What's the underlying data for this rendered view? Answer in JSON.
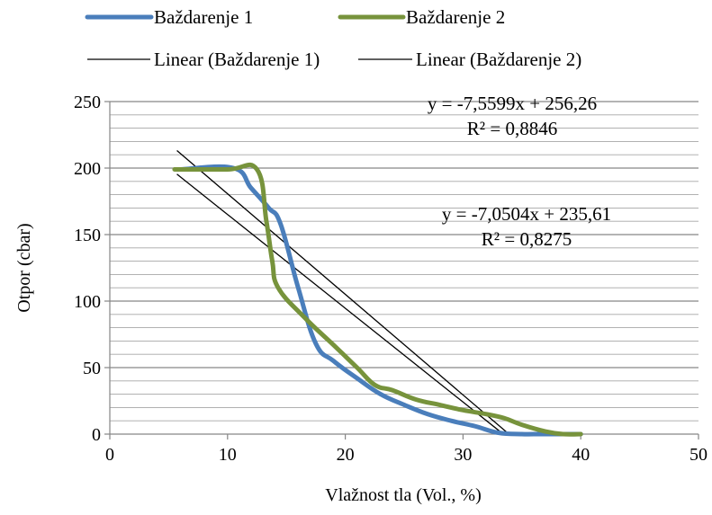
{
  "chart_data": {
    "type": "line",
    "xlabel": "Vlažnost tla (Vol., %)",
    "ylabel": "Otpor  (cbar)",
    "xlim": [
      0,
      50
    ],
    "ylim": [
      0,
      250
    ],
    "x_ticks": [
      0,
      10,
      20,
      30,
      40,
      50
    ],
    "y_ticks": [
      0,
      50,
      100,
      150,
      200,
      250
    ],
    "x_tick_labels": [
      "0",
      "10",
      "20",
      "30",
      "40",
      "50"
    ],
    "y_tick_labels": [
      "0",
      "50",
      "100",
      "150",
      "200",
      "250"
    ],
    "grid": "horizontal",
    "legend": "top",
    "series": [
      {
        "name": "Baždarenje 1",
        "color": "#4A7EBB",
        "points": [
          [
            6,
            199
          ],
          [
            10.5,
            200
          ],
          [
            12,
            185
          ],
          [
            13.5,
            170
          ],
          [
            14.5,
            158
          ],
          [
            16,
            110
          ],
          [
            17.5,
            68
          ],
          [
            19,
            55
          ],
          [
            21,
            42
          ],
          [
            23,
            30
          ],
          [
            25,
            22
          ],
          [
            27,
            15
          ],
          [
            29,
            10
          ],
          [
            31,
            6
          ],
          [
            33,
            1
          ],
          [
            35,
            0
          ],
          [
            36,
            0
          ],
          [
            38,
            0
          ],
          [
            40,
            0
          ]
        ]
      },
      {
        "name": "Baždarenje 2",
        "color": "#77933C",
        "points": [
          [
            5.5,
            199
          ],
          [
            10,
            199
          ],
          [
            12.5,
            199
          ],
          [
            13.3,
            160
          ],
          [
            13.8,
            130
          ],
          [
            14.3,
            110
          ],
          [
            16.5,
            88
          ],
          [
            19,
            67
          ],
          [
            21,
            50
          ],
          [
            22.5,
            37
          ],
          [
            24,
            33
          ],
          [
            26,
            26
          ],
          [
            28,
            22
          ],
          [
            30,
            18
          ],
          [
            32,
            15
          ],
          [
            33.5,
            12
          ],
          [
            35,
            7
          ],
          [
            37,
            2
          ],
          [
            38.5,
            0
          ],
          [
            40,
            0
          ]
        ]
      }
    ],
    "trendlines": [
      {
        "name": "Linear (Baždarenje 1)",
        "color": "#000000",
        "slope": -7.5599,
        "intercept": 256.26,
        "x_range": [
          5.7,
          33.9
        ],
        "equation": "y = -7,5599x + 256,26",
        "r2": "R² = 0,8846"
      },
      {
        "name": "Linear (Baždarenje 2)",
        "color": "#000000",
        "slope": -7.0504,
        "intercept": 235.61,
        "x_range": [
          5.7,
          33.4
        ],
        "equation": "y = -7,0504x + 235,61",
        "r2": "R² = 0,8275"
      }
    ]
  }
}
